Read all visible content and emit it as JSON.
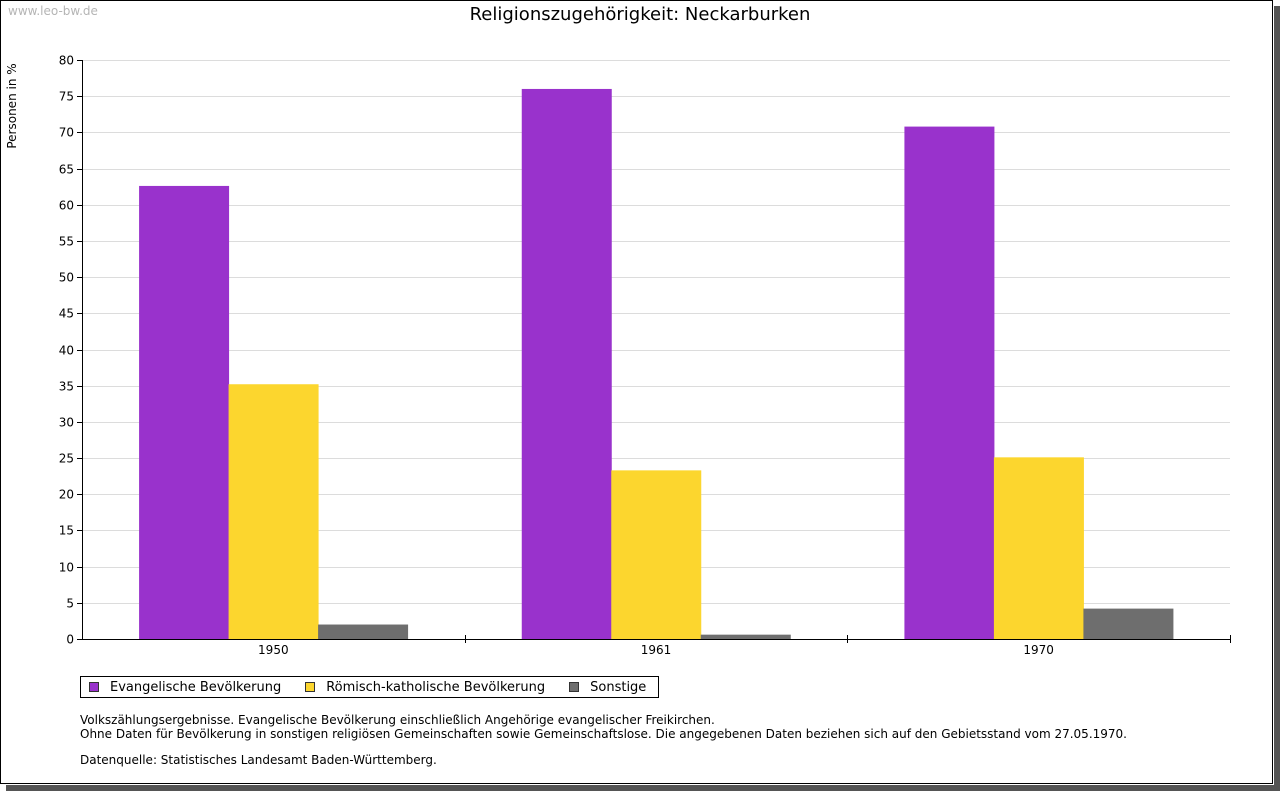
{
  "watermark": "www.leo-bw.de",
  "chart_data": {
    "type": "bar",
    "title": "Religionszugehörigkeit: Neckarburken",
    "xlabel": "",
    "ylabel": "Personen in %",
    "ylim": [
      0,
      80
    ],
    "ytick_step": 5,
    "grid": true,
    "categories": [
      "1950",
      "1961",
      "1970"
    ],
    "series": [
      {
        "name": "Evangelische Bevölkerung",
        "color": "#9932cc",
        "values": [
          62.6,
          76.0,
          70.8
        ]
      },
      {
        "name": "Römisch-katholische Bevölkerung",
        "color": "#fcd62e",
        "values": [
          35.2,
          23.3,
          25.1
        ]
      },
      {
        "name": "Sonstige",
        "color": "#6e6e6e",
        "values": [
          2.0,
          0.6,
          4.2
        ]
      }
    ],
    "legend_position": "bottom-left"
  },
  "notes": [
    "Volkszählungsergebnisse. Evangelische Bevölkerung einschließlich Angehörige evangelischer Freikirchen.",
    "Ohne Daten für Bevölkerung in sonstigen religiösen Gemeinschaften sowie Gemeinschaftslose. Die angegebenen Daten beziehen sich auf den Gebietsstand vom 27.05.1970."
  ],
  "source": "Datenquelle: Statistisches Landesamt Baden-Württemberg."
}
